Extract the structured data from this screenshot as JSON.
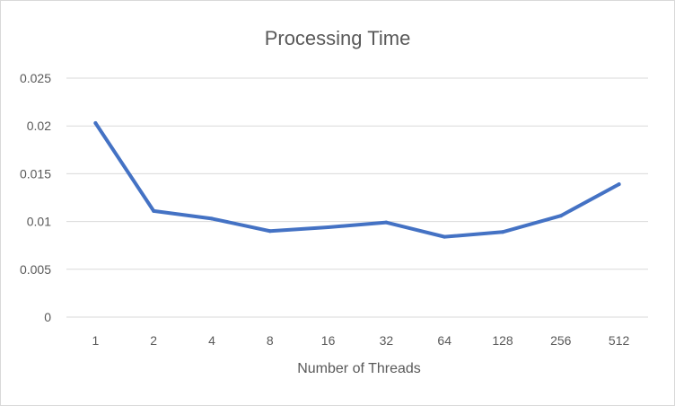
{
  "chart_data": {
    "type": "line",
    "title": "Processing Time",
    "xlabel": "Number of Threads",
    "ylabel": "",
    "categories": [
      "1",
      "2",
      "4",
      "8",
      "16",
      "32",
      "64",
      "128",
      "256",
      "512"
    ],
    "series": [
      {
        "values": [
          0.0203,
          0.0111,
          0.0103,
          0.009,
          0.0094,
          0.0099,
          0.0084,
          0.0089,
          0.0106,
          0.0139
        ]
      }
    ],
    "ylim": [
      0,
      0.025
    ],
    "yticks": [
      "0",
      "0.005",
      "0.01",
      "0.015",
      "0.02",
      "0.025"
    ],
    "grid": true,
    "legend": "none",
    "colors": {
      "series": "#4472c4",
      "grid": "#d9d9d9",
      "text": "#595959"
    }
  }
}
